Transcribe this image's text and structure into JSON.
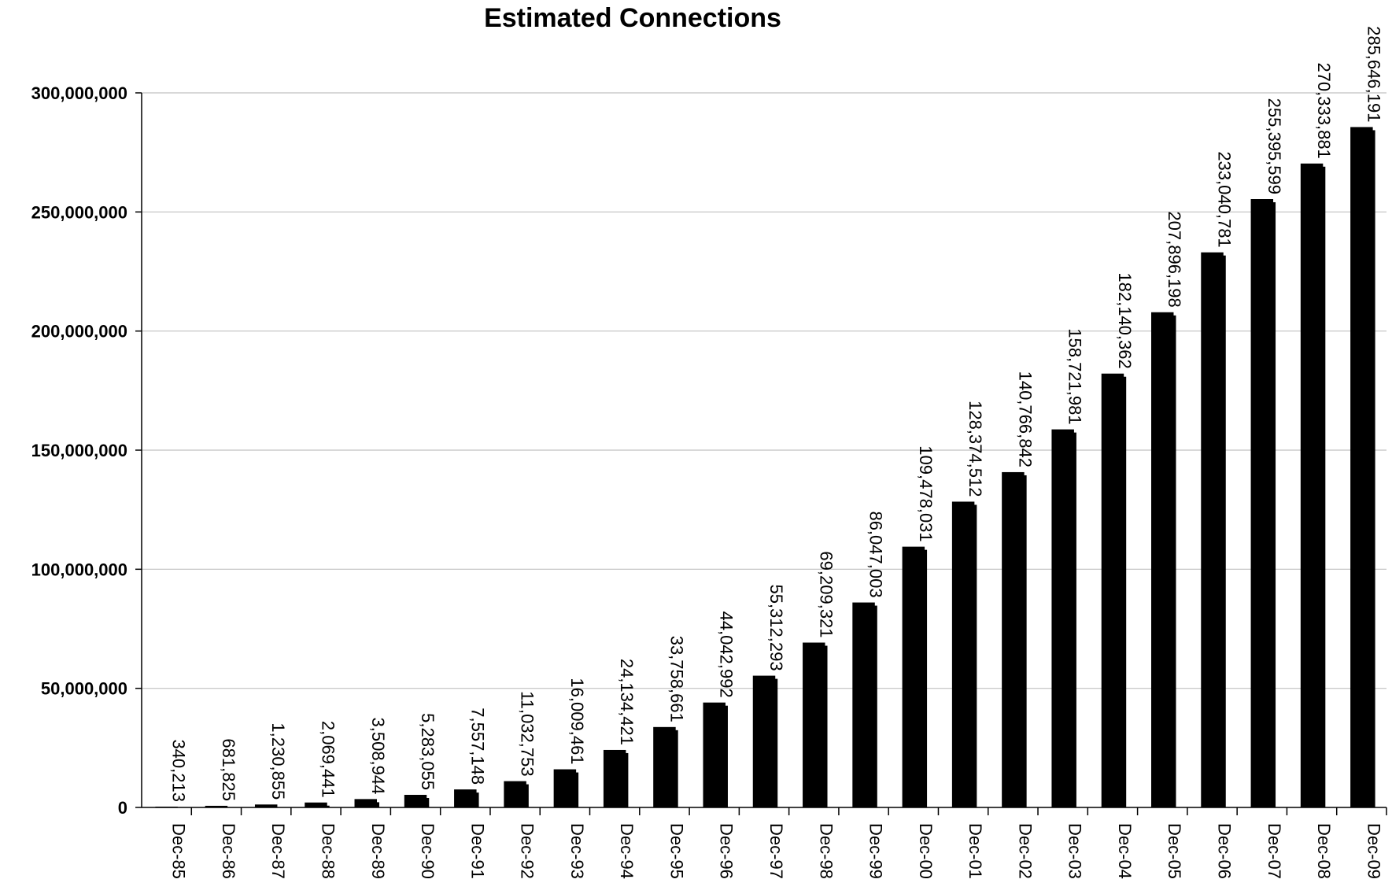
{
  "chart_data": {
    "type": "bar",
    "title": "Estimated Connections",
    "xlabel": "",
    "ylabel": "",
    "categories": [
      "Dec-85",
      "Dec-86",
      "Dec-87",
      "Dec-88",
      "Dec-89",
      "Dec-90",
      "Dec-91",
      "Dec-92",
      "Dec-93",
      "Dec-94",
      "Dec-95",
      "Dec-96",
      "Dec-97",
      "Dec-98",
      "Dec-99",
      "Dec-00",
      "Dec-01",
      "Dec-02",
      "Dec-03",
      "Dec-04",
      "Dec-05",
      "Dec-06",
      "Dec-07",
      "Dec-08",
      "Dec-09"
    ],
    "values": [
      340213,
      681825,
      1230855,
      2069441,
      3508944,
      5283055,
      7557148,
      11032753,
      16009461,
      24134421,
      33758661,
      44042992,
      55312293,
      69209321,
      86047003,
      109478031,
      128374512,
      140766842,
      158721981,
      182140362,
      207896198,
      233040781,
      255395599,
      270333881,
      285646191
    ],
    "data_labels": [
      "340,213",
      "681,825",
      "1,230,855",
      "2,069,441",
      "3,508,944",
      "5,283,055",
      "7,557,148",
      "11,032,753",
      "16,009,461",
      "24,134,421",
      "33,758,661",
      "44,042,992",
      "55,312,293",
      "69,209,321",
      "86,047,003",
      "109,478,031",
      "128,374,512",
      "140,766,842",
      "158,721,981",
      "182,140,362",
      "207,896,198",
      "233,040,781",
      "255,395,599",
      "270,333,881",
      "285,646,191"
    ],
    "ylim": [
      0,
      300000000
    ],
    "yticks": [
      0,
      50000000,
      100000000,
      150000000,
      200000000,
      250000000,
      300000000
    ],
    "ytick_labels": [
      "0",
      "50,000,000",
      "100,000,000",
      "150,000,000",
      "200,000,000",
      "250,000,000",
      "300,000,000"
    ],
    "grid": true,
    "legend": "none",
    "bar_color": "#000000",
    "grid_color": "#c0c0c0"
  }
}
